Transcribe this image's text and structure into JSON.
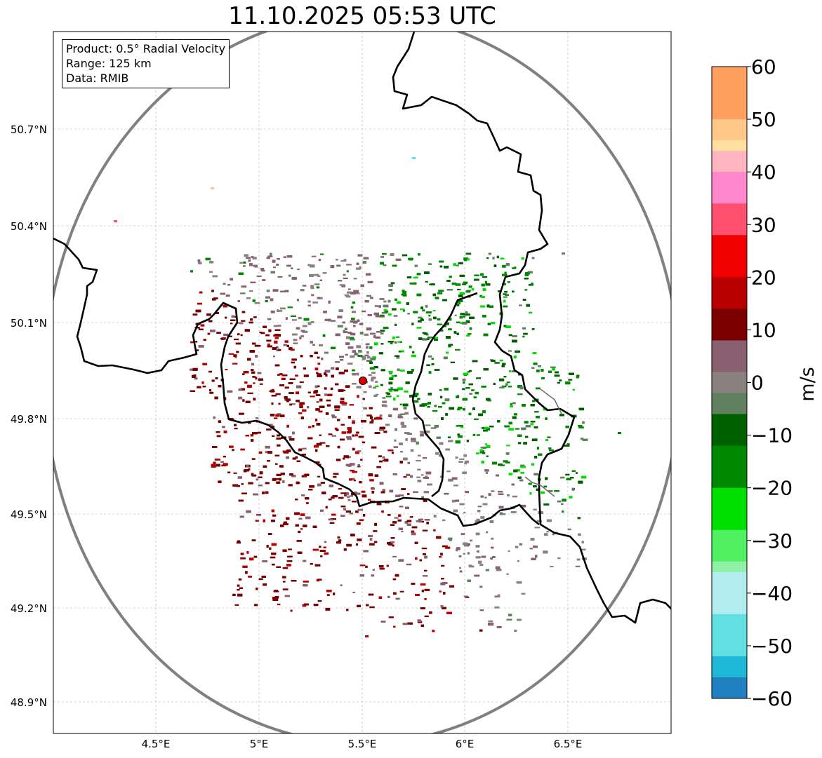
{
  "title": "11.10.2025 05:53 UTC",
  "info": {
    "product": "Product: 0.5° Radial Velocity",
    "range": "Range: 125 km",
    "data": "Data: RMIB"
  },
  "map": {
    "lat_ticks": [
      "50.7°N",
      "50.4°N",
      "50.1°N",
      "49.8°N",
      "49.5°N",
      "49.2°N",
      "48.9°N"
    ],
    "lon_ticks": [
      "4.5°E",
      "5°E",
      "5.5°E",
      "6°E",
      "6.5°E"
    ],
    "radar_site": {
      "lon": 5.505,
      "lat": 49.914
    },
    "range_ring_color": "#808080",
    "border_color": "#000000"
  },
  "colorbar": {
    "label": "m/s",
    "ticks": [
      "60",
      "50",
      "40",
      "30",
      "20",
      "10",
      "0",
      "−10",
      "−20",
      "−30",
      "−40",
      "−50",
      "−60"
    ],
    "vmin": -60,
    "vmax": 60,
    "stops": [
      {
        "from": 50,
        "to": 60,
        "color": "#ffa060"
      },
      {
        "from": 46,
        "to": 50,
        "color": "#ffc888"
      },
      {
        "from": 44,
        "to": 46,
        "color": "#ffe0a0"
      },
      {
        "from": 40,
        "to": 44,
        "color": "#ffb4c0"
      },
      {
        "from": 34,
        "to": 40,
        "color": "#ff88cc"
      },
      {
        "from": 28,
        "to": 34,
        "color": "#ff5070"
      },
      {
        "from": 20,
        "to": 28,
        "color": "#f00000"
      },
      {
        "from": 14,
        "to": 20,
        "color": "#b80000"
      },
      {
        "from": 8,
        "to": 14,
        "color": "#7a0000"
      },
      {
        "from": 2,
        "to": 8,
        "color": "#886070"
      },
      {
        "from": -2,
        "to": 2,
        "color": "#8a8080"
      },
      {
        "from": -6,
        "to": -2,
        "color": "#608060"
      },
      {
        "from": -12,
        "to": -6,
        "color": "#006000"
      },
      {
        "from": -20,
        "to": -12,
        "color": "#008800"
      },
      {
        "from": -28,
        "to": -20,
        "color": "#00e000"
      },
      {
        "from": -34,
        "to": -28,
        "color": "#50f060"
      },
      {
        "from": -36,
        "to": -34,
        "color": "#90f0a8"
      },
      {
        "from": -44,
        "to": -36,
        "color": "#b0ecf0"
      },
      {
        "from": -52,
        "to": -44,
        "color": "#60e0e0"
      },
      {
        "from": -56,
        "to": -52,
        "color": "#20b8d8"
      },
      {
        "from": -60,
        "to": -56,
        "color": "#2080c0"
      }
    ]
  }
}
